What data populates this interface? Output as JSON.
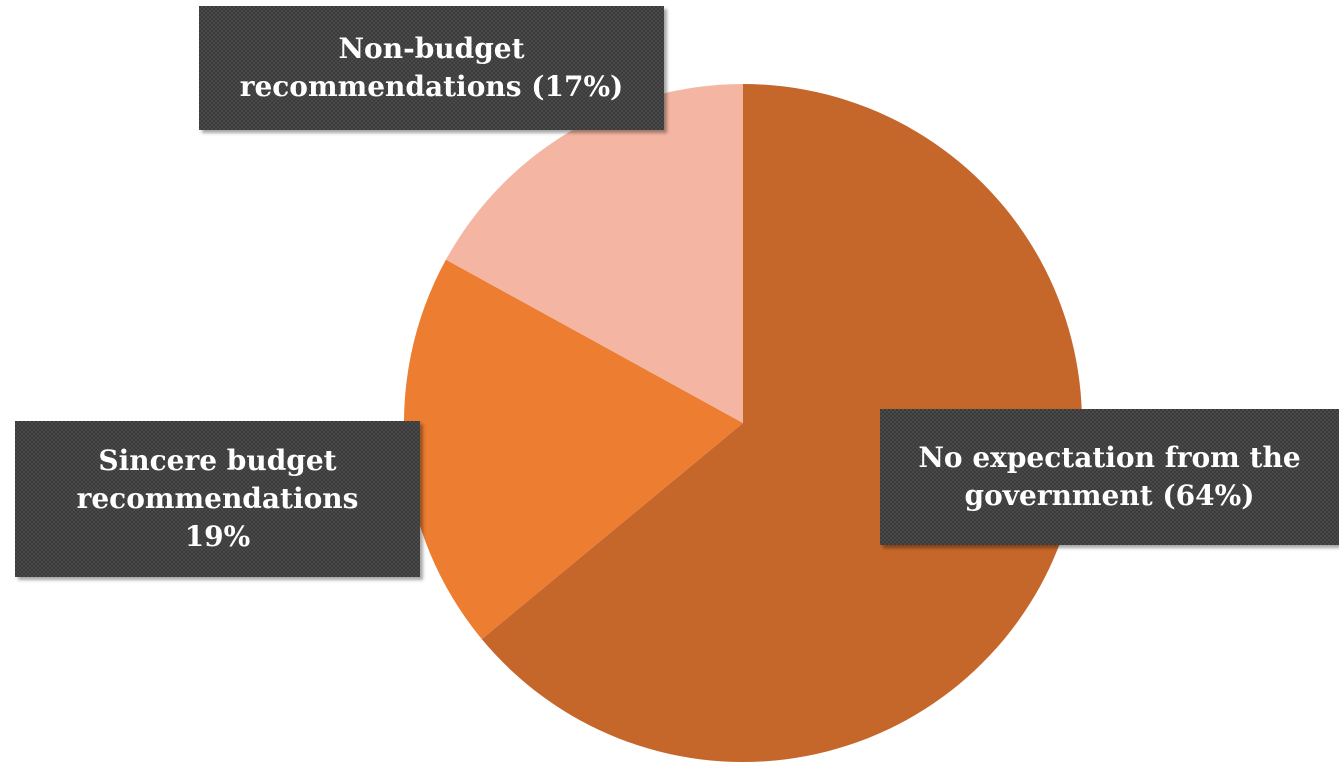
{
  "chart_data": {
    "type": "pie",
    "title": "",
    "start_angle_deg": 0,
    "direction": "clockwise",
    "slices": [
      {
        "label": "No expectation from the government (64%)",
        "value": 64,
        "color": "#c5662a"
      },
      {
        "label": "Sincere budget recommendations 19%",
        "value": 19,
        "color": "#ed7d31"
      },
      {
        "label": "Non-budget recommendations (17%)",
        "value": 17,
        "color": "#f4b6a2"
      }
    ],
    "data_labels": [
      {
        "lines": [
          "No expectation from the",
          "government (64%)"
        ]
      },
      {
        "lines": [
          "Sincere budget",
          "recommendations",
          "19%"
        ]
      },
      {
        "lines": [
          "Non-budget",
          "recommendations (17%)"
        ]
      }
    ],
    "legend": "none",
    "label_style": {
      "background": "#3b3b3b",
      "text_color": "#ffffff"
    }
  }
}
